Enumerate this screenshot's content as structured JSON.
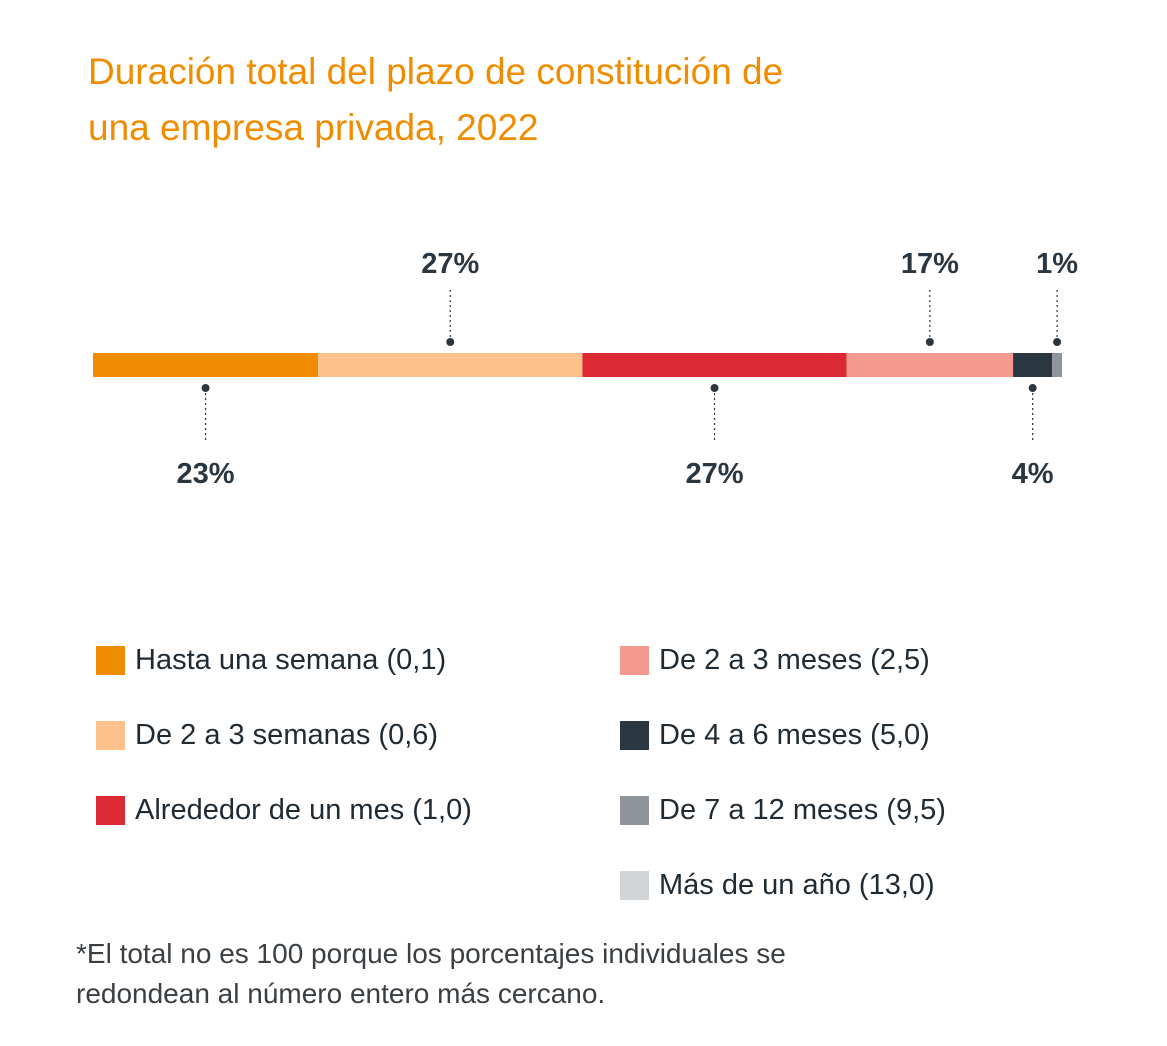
{
  "chart_data": {
    "type": "bar",
    "orientation": "horizontal-stacked",
    "title_lines": [
      "Duración total del plazo de constitución de",
      "una empresa privada, 2022"
    ],
    "xlim": [
      0,
      100
    ],
    "series": [
      {
        "name": "Hasta una semana (0,1)",
        "value": 23,
        "label": "23%",
        "color": "#f08c00",
        "label_side": "below"
      },
      {
        "name": "De 2 a 3 semanas (0,6)",
        "value": 27,
        "label": "27%",
        "color": "#fdc28c",
        "label_side": "above"
      },
      {
        "name": "Alrededor de un mes (1,0)",
        "value": 27,
        "label": "27%",
        "color": "#dc2a34",
        "label_side": "below"
      },
      {
        "name": "De 2 a 3 meses (2,5)",
        "value": 17,
        "label": "17%",
        "color": "#f4998f",
        "label_side": "above"
      },
      {
        "name": "De 4 a 6 meses (5,0)",
        "value": 4,
        "label": "4%",
        "color": "#2b3740",
        "label_side": "below"
      },
      {
        "name": "De 7 a 12 meses (9,5)",
        "value": 1,
        "label": "1%",
        "color": "#8f959b",
        "label_side": "above"
      },
      {
        "name": "Más de un año (13,0)",
        "value": 0,
        "label": "",
        "color": "#d2d5d8",
        "label_side": "none"
      }
    ],
    "legend_placement": "bottom",
    "footnote_lines": [
      "*El total no es 100 porque los porcentajes individuales se",
      "redondean al número entero más cercano."
    ]
  }
}
